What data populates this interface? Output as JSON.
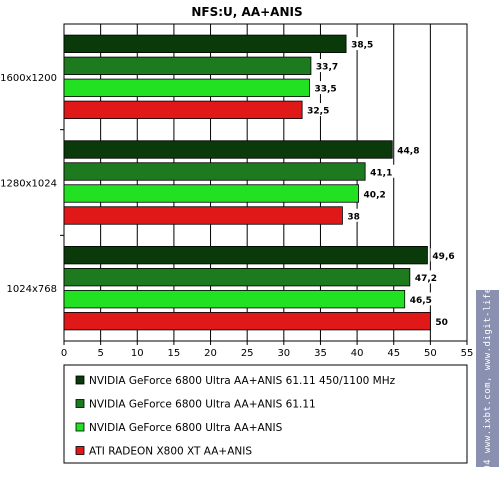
{
  "chart_data": {
    "type": "bar",
    "orientation": "horizontal",
    "title": "NFS:U, AA+ANIS",
    "categories": [
      "1600x1200",
      "1280x1024",
      "1024x768"
    ],
    "series": [
      {
        "name": "NVIDIA GeForce 6800 Ultra AA+ANIS 61.11 450/1100 MHz",
        "color": "#0a3a0a",
        "values": [
          38.5,
          44.8,
          49.6
        ],
        "labels": [
          "38,5",
          "44,8",
          "49,6"
        ]
      },
      {
        "name": "NVIDIA GeForce 6800 Ultra AA+ANIS 61.11",
        "color": "#1e7a1e",
        "values": [
          33.7,
          41.1,
          47.2
        ],
        "labels": [
          "33,7",
          "41,1",
          "47,2"
        ]
      },
      {
        "name": "NVIDIA GeForce 6800 Ultra AA+ANIS",
        "color": "#22e022",
        "values": [
          33.5,
          40.2,
          46.5
        ],
        "labels": [
          "33,5",
          "40,2",
          "46,5"
        ]
      },
      {
        "name": "ATI RADEON X800 XT AA+ANIS",
        "color": "#e01818",
        "values": [
          32.5,
          38,
          50
        ],
        "labels": [
          "32,5",
          "38",
          "50"
        ]
      }
    ],
    "xlim": [
      0,
      55
    ],
    "xticks": [
      0,
      5,
      10,
      15,
      20,
      25,
      30,
      35,
      40,
      45,
      50,
      55
    ],
    "grid": true,
    "legend_position": "bottom"
  },
  "watermark": "© 2004 www.ixbt.com, www.digit-life.com"
}
